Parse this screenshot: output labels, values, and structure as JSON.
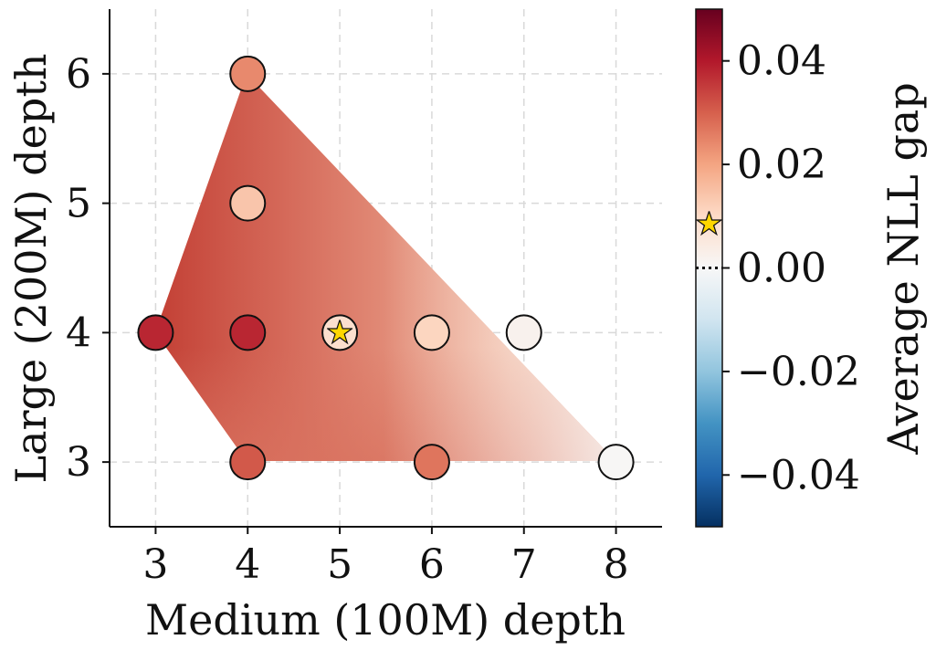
{
  "chart_data": {
    "type": "scatter",
    "xlabel": "Medium (100M) depth",
    "ylabel": "Large (200M) depth",
    "xlim": [
      2.5,
      8.5
    ],
    "ylim": [
      2.5,
      6.5
    ],
    "x_ticks": [
      "3",
      "4",
      "5",
      "6",
      "7",
      "8"
    ],
    "y_ticks": [
      "3",
      "4",
      "5",
      "6"
    ],
    "grid": true,
    "colorbar": {
      "label": "Average NLL gap",
      "range": [
        -0.05,
        0.05
      ],
      "ticks": [
        "0.04",
        "0.02",
        "0.00",
        "−0.02",
        "−0.04"
      ],
      "colormap": "RdBu_r",
      "colors": [
        "#053061",
        "#2166ac",
        "#4393c3",
        "#92c5de",
        "#d1e5f0",
        "#f7f7f7",
        "#fddbc7",
        "#f4a582",
        "#d6604d",
        "#b2182b",
        "#67001f"
      ],
      "zero_marker": "dotted",
      "star_value": 0.0085
    },
    "points": [
      {
        "x": 3,
        "y": 4,
        "value": 0.038
      },
      {
        "x": 4,
        "y": 3,
        "value": 0.031
      },
      {
        "x": 4,
        "y": 4,
        "value": 0.038
      },
      {
        "x": 4,
        "y": 5,
        "value": 0.014
      },
      {
        "x": 4,
        "y": 6,
        "value": 0.024
      },
      {
        "x": 5,
        "y": 4,
        "value": 0.0085,
        "best": true
      },
      {
        "x": 6,
        "y": 3,
        "value": 0.027
      },
      {
        "x": 6,
        "y": 4,
        "value": 0.011
      },
      {
        "x": 7,
        "y": 4,
        "value": 0.002
      },
      {
        "x": 8,
        "y": 3,
        "value": 0.0005
      }
    ],
    "star_color": "#ffd700"
  }
}
